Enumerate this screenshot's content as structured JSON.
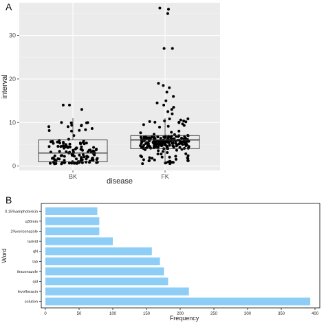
{
  "panels": {
    "a_label": "A",
    "b_label": "B"
  },
  "chart_data": [
    {
      "type": "box",
      "panel": "A",
      "xlabel": "disease",
      "ylabel": "interval",
      "categories": [
        "BK",
        "FK"
      ],
      "yticks": [
        0,
        10,
        20,
        30
      ],
      "ylim": [
        -1,
        37.5
      ],
      "grid": true,
      "boxes": [
        {
          "category": "BK",
          "q1": 1,
          "median": 3,
          "q3": 6,
          "whisker_low": 0.5,
          "whisker_high": 11
        },
        {
          "category": "FK",
          "q1": 4,
          "median": 6,
          "q3": 7,
          "whisker_low": 0.5,
          "whisker_high": 11
        }
      ],
      "outliers": [
        {
          "category": "BK",
          "values": [
            13,
            14,
            14
          ]
        },
        {
          "category": "FK",
          "values": [
            12,
            12.5,
            13,
            13.5,
            14,
            14.5,
            15,
            16,
            17,
            18,
            18.5,
            19,
            27,
            27,
            35,
            36,
            36.3
          ]
        }
      ],
      "jitter_counts": {
        "BK": 130,
        "FK": 210
      }
    },
    {
      "type": "bar",
      "orientation": "horizontal",
      "panel": "B",
      "xlabel": "Frequency",
      "ylabel": "Word",
      "categories": [
        "0.15%amphotericin",
        "q30min",
        "2%voriconazole",
        "tarivid",
        "qN",
        "tab",
        "itraconazole",
        "qid",
        "levofloxacin",
        "solution"
      ],
      "values": [
        77,
        80,
        80,
        100,
        158,
        170,
        176,
        182,
        213,
        393
      ],
      "xticks": [
        0,
        50,
        100,
        150,
        200,
        250,
        300,
        350,
        400
      ],
      "xlim": [
        0,
        400
      ],
      "color": "#8ecef6",
      "grid": false
    }
  ]
}
